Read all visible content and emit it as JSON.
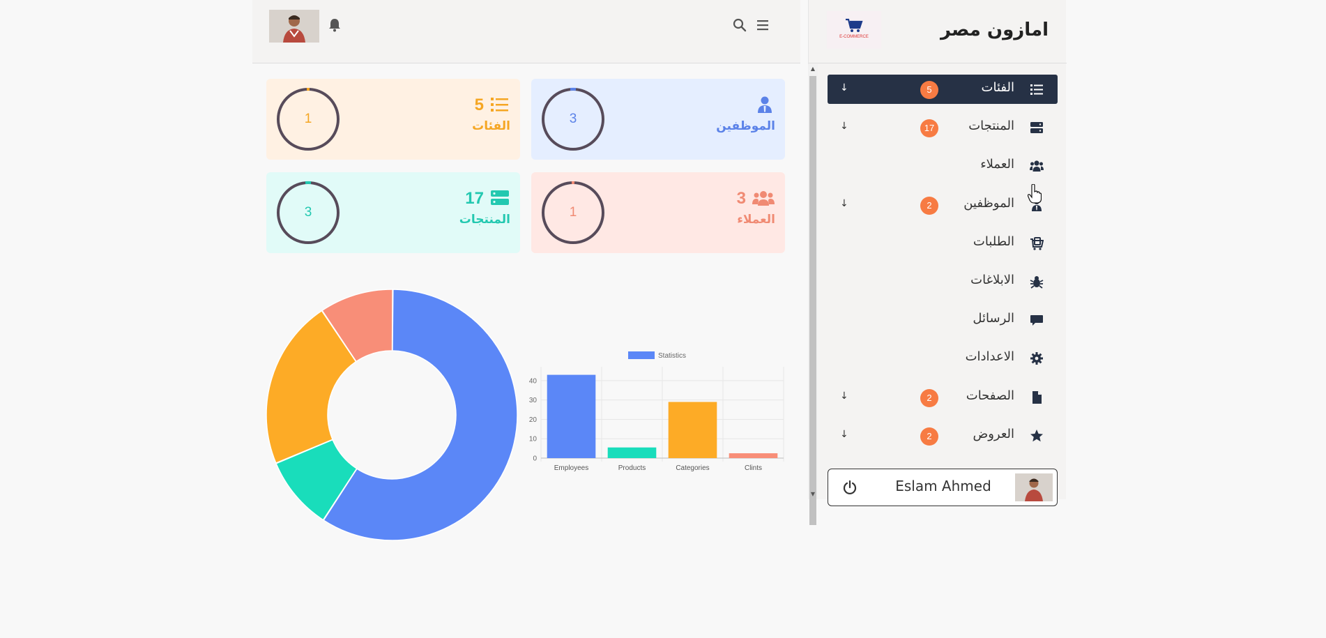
{
  "brand": {
    "name": "امازون مصر",
    "logo_text": "E-COMMERCE"
  },
  "topbar": {
    "icons": [
      "avatar",
      "bell-icon",
      "search-icon",
      "menu-icon"
    ]
  },
  "cards": [
    {
      "id": "employees",
      "title": "الموظفين",
      "number": "",
      "ring_value": "3",
      "color": "#5b82e8",
      "bg": "#e5eeff",
      "icon": "user-tie-icon"
    },
    {
      "id": "categories",
      "title": "الفئات",
      "number": "5",
      "ring_value": "1",
      "color": "#f5a623",
      "bg": "#fff1e3",
      "icon": "list-icon"
    },
    {
      "id": "clients",
      "title": "العملاء",
      "number": "3",
      "ring_value": "1",
      "color": "#f08a73",
      "bg": "#ffe8e4",
      "icon": "users-icon"
    },
    {
      "id": "products",
      "title": "المنتجات",
      "number": "17",
      "ring_value": "3",
      "color": "#23c8b0",
      "bg": "#e1fbf8",
      "icon": "server-icon"
    }
  ],
  "sidebar": {
    "items": [
      {
        "label": "الفئات",
        "badge": "5",
        "arrow": "↓",
        "icon": "list-icon",
        "active": true
      },
      {
        "label": "المنتجات",
        "badge": "17",
        "arrow": "↓",
        "icon": "server-icon"
      },
      {
        "label": "العملاء",
        "badge": "",
        "arrow": "",
        "icon": "users-icon"
      },
      {
        "label": "الموظفين",
        "badge": "2",
        "arrow": "↓",
        "icon": "user-tie-icon"
      },
      {
        "label": "الطلبات",
        "badge": "",
        "arrow": "",
        "icon": "cart-icon"
      },
      {
        "label": "الابلاغات",
        "badge": "",
        "arrow": "",
        "icon": "bug-icon"
      },
      {
        "label": "الرسائل",
        "badge": "",
        "arrow": "",
        "icon": "comment-icon"
      },
      {
        "label": "الاعدادات",
        "badge": "",
        "arrow": "",
        "icon": "gear-icon"
      },
      {
        "label": "الصفحات",
        "badge": "2",
        "arrow": "↓",
        "icon": "file-icon"
      },
      {
        "label": "العروض",
        "badge": "2",
        "arrow": "↓",
        "icon": "star-icon"
      }
    ]
  },
  "user": {
    "name": "Eslam Ahmed"
  },
  "chart_data": [
    {
      "type": "pie",
      "categories": [
        "Employees",
        "Products",
        "Categories",
        "Clints"
      ],
      "values": [
        62,
        10,
        23,
        10
      ],
      "colors": [
        "#5b87f7",
        "#19ddbb",
        "#fdab26",
        "#f88e78"
      ],
      "donut": true
    },
    {
      "type": "bar",
      "categories": [
        "Employees",
        "Products",
        "Categories",
        "Clints"
      ],
      "series": [
        {
          "name": "Statistics",
          "values": [
            43,
            5.5,
            29,
            2.5
          ]
        }
      ],
      "colors": [
        "#5b87f7",
        "#19ddbb",
        "#fdab26",
        "#f88e78"
      ],
      "ylim": [
        0,
        45
      ],
      "yticks": [
        "0",
        "10",
        "20",
        "30",
        "40"
      ],
      "grid": true,
      "legend": "top"
    }
  ]
}
